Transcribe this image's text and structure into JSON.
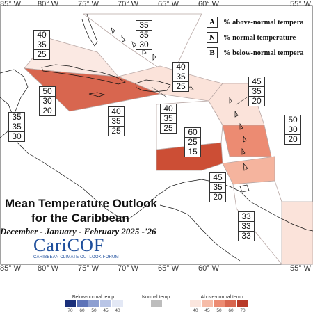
{
  "map": {
    "lon_labels_top": [
      "85° W",
      "80° W",
      "75° W",
      "70° W",
      "65° W",
      "60° W",
      "55° W"
    ],
    "lon_labels_bottom": [
      "85° W",
      "80° W",
      "75° W",
      "70° W",
      "65° W",
      "60° W",
      "55° W"
    ],
    "title_line1": "Mean Temperature Outlook",
    "title_line2": "for the Caribbean",
    "title_line3": "December - January - February 2025 -'26",
    "logo_text": "CariCOF",
    "logo_subtitle": "CARIBBEAN CLIMATE OUTLOOK FORUM"
  },
  "key": {
    "rows": [
      {
        "letter": "A",
        "text": "% above-normal tempera"
      },
      {
        "letter": "N",
        "text": "% normal temperature"
      },
      {
        "letter": "B",
        "text": "% below-normal tempera"
      }
    ]
  },
  "regions": [
    {
      "name": "north-bahamas",
      "values": [
        "35",
        "35",
        "30"
      ],
      "fill": "#ffffff"
    },
    {
      "name": "gulf-mexico",
      "values": [
        "40",
        "35",
        "25"
      ],
      "fill": "#fbe9e3"
    },
    {
      "name": "cuba",
      "values": [
        "50",
        "30",
        "20"
      ],
      "fill": "#d8664f"
    },
    {
      "name": "hispaniola",
      "values": [
        "40",
        "35",
        "25"
      ],
      "fill": "#fbe3da"
    },
    {
      "name": "leeward-islands",
      "values": [
        "45",
        "35",
        "20"
      ],
      "fill": "#fbe3da"
    },
    {
      "name": "yucatan",
      "values": [
        "35",
        "35",
        "30"
      ],
      "fill": "#ffffff"
    },
    {
      "name": "cayman-jamaica",
      "values": [
        "40",
        "35",
        "25"
      ],
      "fill": "#ffffff"
    },
    {
      "name": "puerto-rico",
      "values": [
        "40",
        "35",
        "25"
      ],
      "fill": "#ffffff"
    },
    {
      "name": "windward-islands",
      "values": [
        "50",
        "30",
        "20"
      ],
      "fill": "#ec8b72"
    },
    {
      "name": "central-caribbean",
      "values": [
        "60",
        "25",
        "15"
      ],
      "fill": "#cc4e35"
    },
    {
      "name": "southeast-caribbean",
      "values": [
        "45",
        "35",
        "20"
      ],
      "fill": "#f5b49e"
    },
    {
      "name": "guianas",
      "values": [
        "33",
        "33",
        "33"
      ],
      "fill": "#fbe3da"
    }
  ],
  "legend": {
    "below_label": "Below-normal temp.",
    "normal_label": "Normal temp.",
    "above_label": "Above-normal temp.",
    "below_ticks": [
      "70",
      "60",
      "50",
      "45",
      "40"
    ],
    "normal_ticks": [
      ""
    ],
    "above_ticks": [
      "40",
      "45",
      "50",
      "60",
      "70"
    ],
    "below_colors": [
      "#1a2f7a",
      "#5d73b8",
      "#8d9fd1",
      "#b9c5e6",
      "#e3e8f5"
    ],
    "normal_color": "#bdbdbd",
    "above_colors": [
      "#fbe6de",
      "#f6bca8",
      "#ec8b72",
      "#d8664f",
      "#b83a28"
    ]
  }
}
